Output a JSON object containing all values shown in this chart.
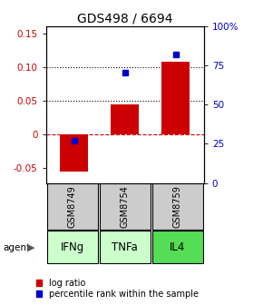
{
  "title": "GDS498 / 6694",
  "samples": [
    "GSM8749",
    "GSM8754",
    "GSM8759"
  ],
  "agents": [
    "IFNg",
    "TNFa",
    "IL4"
  ],
  "log_ratios": [
    -0.055,
    0.045,
    0.108
  ],
  "percentile_ranks": [
    27,
    70,
    82
  ],
  "ylim_left": [
    -0.0722,
    0.1611
  ],
  "ylim_right": [
    0,
    100
  ],
  "yticks_left": [
    -0.05,
    0.0,
    0.05,
    0.1,
    0.15
  ],
  "yticks_right": [
    0,
    25,
    50,
    75,
    100
  ],
  "ytick_labels_left": [
    "-0.05",
    "0",
    "0.05",
    "0.10",
    "0.15"
  ],
  "ytick_labels_right": [
    "0",
    "25",
    "50",
    "75",
    "100%"
  ],
  "hlines_dotted": [
    0.05,
    0.1
  ],
  "hline_dashed": 0.0,
  "bar_color": "#cc0000",
  "square_color": "#0000cc",
  "agent_colors": [
    "#ccffcc",
    "#ccffcc",
    "#55dd55"
  ],
  "sample_box_color": "#cccccc",
  "bar_width": 0.55,
  "title_fontsize": 10,
  "tick_fontsize": 7.5,
  "legend_fontsize": 7,
  "agent_label_fontsize": 8.5,
  "sample_label_fontsize": 7
}
